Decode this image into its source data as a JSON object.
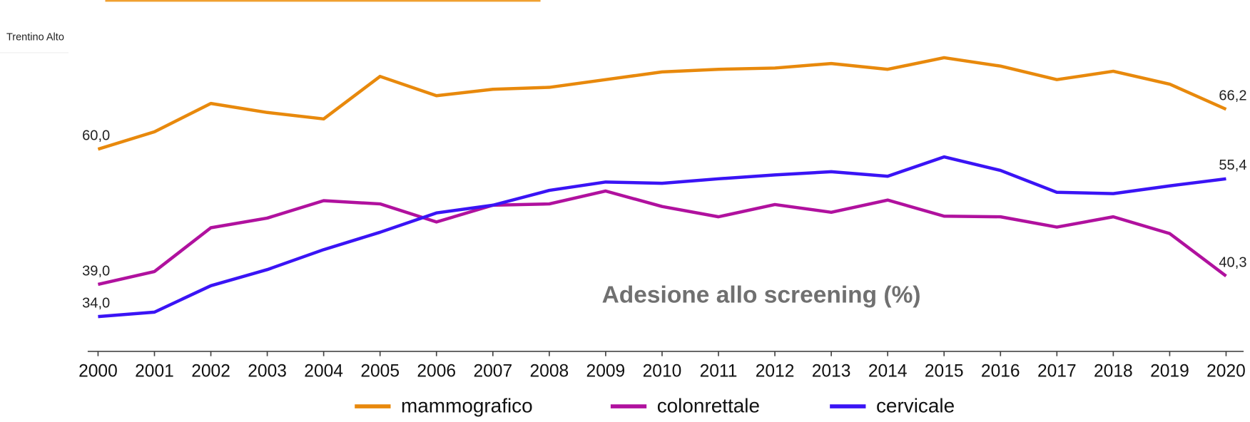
{
  "chart_data": {
    "type": "line",
    "title": "Adesione allo screening (%)",
    "background_label": "Trentino Alto",
    "categories": [
      "2000",
      "2001",
      "2002",
      "2003",
      "2004",
      "2005",
      "2006",
      "2007",
      "2008",
      "2009",
      "2010",
      "2011",
      "2012",
      "2013",
      "2014",
      "2015",
      "2016",
      "2017",
      "2018",
      "2019",
      "2020"
    ],
    "series": [
      {
        "name": "mammografico",
        "color": "#e8890c",
        "values": [
          60.0,
          62.7,
          67.1,
          65.7,
          64.7,
          71.3,
          68.3,
          69.3,
          69.6,
          70.8,
          72.0,
          72.4,
          72.6,
          73.3,
          72.4,
          74.2,
          72.9,
          70.8,
          72.1,
          70.1,
          66.2
        ],
        "value_labels": [
          "60,0",
          null,
          null,
          null,
          null,
          null,
          null,
          null,
          null,
          null,
          null,
          null,
          null,
          null,
          null,
          null,
          null,
          null,
          null,
          null,
          "66,2"
        ]
      },
      {
        "name": "colonrettale",
        "color": "#b0119e",
        "values": [
          39.0,
          41.0,
          47.8,
          49.3,
          52.0,
          51.5,
          48.7,
          51.3,
          51.5,
          53.5,
          51.1,
          49.5,
          51.4,
          50.2,
          52.1,
          49.6,
          49.5,
          47.9,
          49.5,
          46.9,
          40.3
        ],
        "value_labels": [
          "39,0",
          null,
          null,
          null,
          null,
          null,
          null,
          null,
          null,
          null,
          null,
          null,
          null,
          null,
          null,
          null,
          null,
          null,
          null,
          null,
          "40,3"
        ]
      },
      {
        "name": "cervicale",
        "color": "#3a14f5",
        "values": [
          34.0,
          34.7,
          38.8,
          41.3,
          44.4,
          47.1,
          50.1,
          51.3,
          53.6,
          54.9,
          54.7,
          55.4,
          56.0,
          56.5,
          55.8,
          58.8,
          56.7,
          53.3,
          53.1,
          54.3,
          55.4
        ],
        "value_labels": [
          "34,0",
          null,
          null,
          null,
          null,
          null,
          null,
          null,
          null,
          null,
          null,
          null,
          null,
          null,
          null,
          null,
          null,
          null,
          null,
          null,
          "55,4"
        ]
      }
    ],
    "ylim": [
      28.6,
      80
    ],
    "legend": "bottom"
  }
}
